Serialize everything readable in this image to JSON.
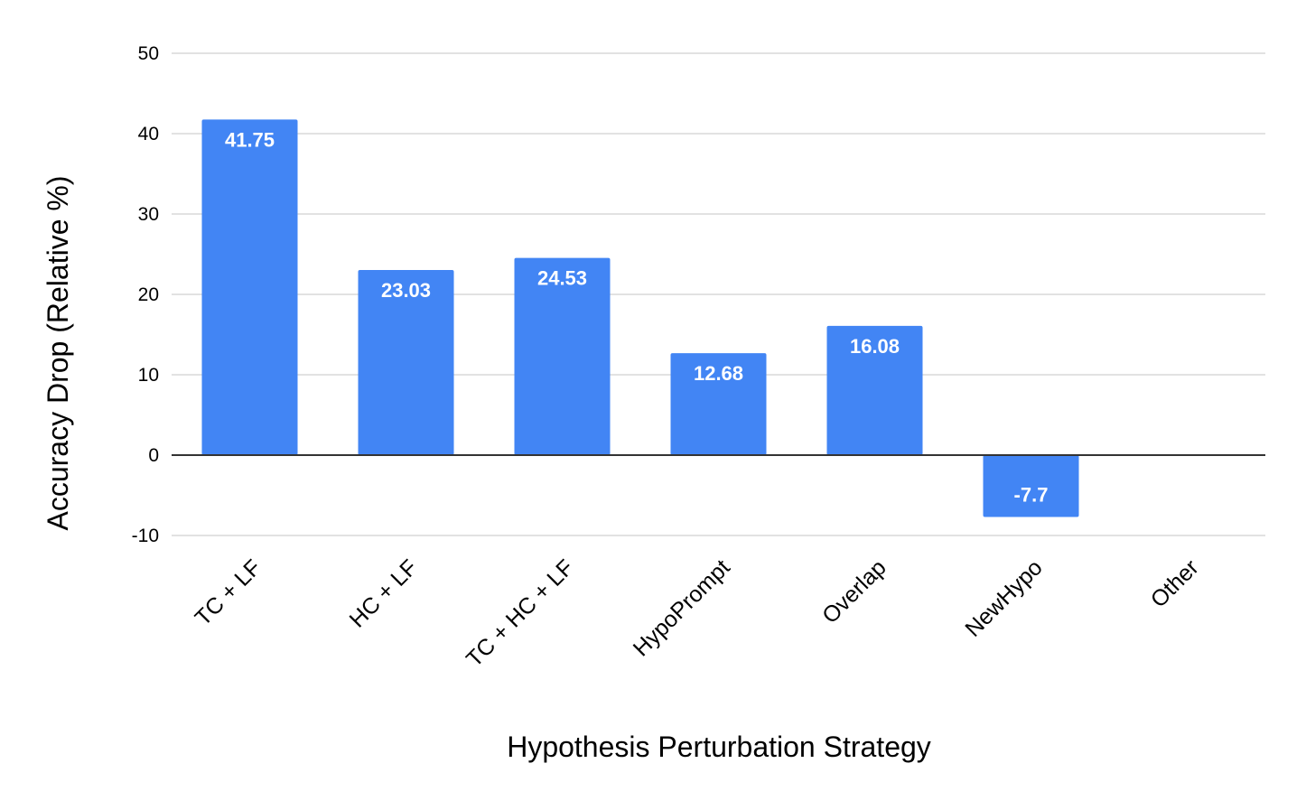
{
  "chart_data": {
    "type": "bar",
    "title": "",
    "xlabel": "Hypothesis Perturbation Strategy",
    "ylabel": "Accuracy Drop (Relative %)",
    "categories": [
      "TC + LF",
      "HC + LF",
      "TC + HC + LF",
      "HypoPrompt",
      "Overlap",
      "NewHypo",
      "Other"
    ],
    "values": [
      41.75,
      23.03,
      24.53,
      12.68,
      16.08,
      -7.7,
      0
    ],
    "data_labels": [
      "41.75",
      "23.03",
      "24.53",
      "12.68",
      "16.08",
      "-7.7",
      ""
    ],
    "ylim": [
      -10,
      50
    ],
    "yticks": [
      -10,
      0,
      10,
      20,
      30,
      40,
      50
    ],
    "ytick_labels": [
      "-10",
      "0",
      "10",
      "20",
      "30",
      "40",
      "50"
    ],
    "grid": true,
    "legend": "none",
    "bar_color": "#4285f4",
    "gridline_color": "#d9d9d9",
    "zero_line_color": "#333333"
  }
}
